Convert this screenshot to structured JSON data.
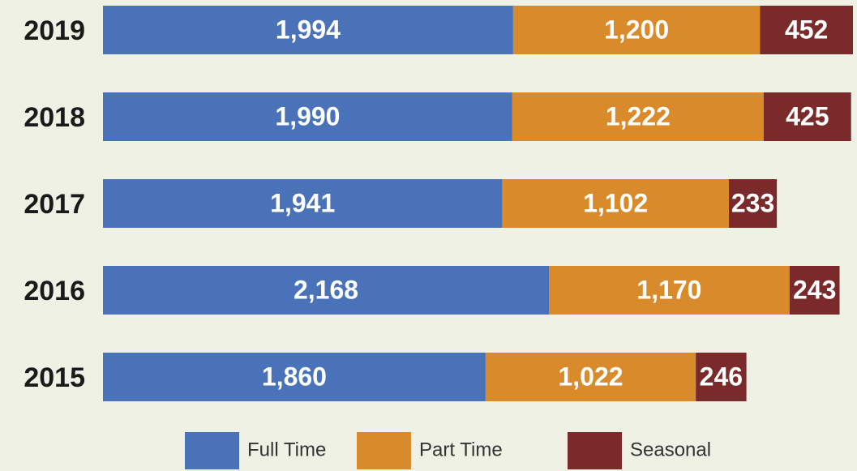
{
  "chart_data": {
    "type": "stacked-bar-horizontal",
    "categories": [
      "2019",
      "2018",
      "2017",
      "2016",
      "2015"
    ],
    "series": [
      {
        "name": "Full Time",
        "color": "#4a72b9",
        "values": [
          1994,
          1990,
          1941,
          2168,
          1860
        ],
        "value_labels": [
          "1,994",
          "1,990",
          "1,941",
          "2,168",
          "1,860"
        ]
      },
      {
        "name": "Part Time",
        "color": "#d98a2b",
        "values": [
          1200,
          1222,
          1102,
          1170,
          1022
        ],
        "value_labels": [
          "1,200",
          "1,222",
          "1,102",
          "1,170",
          "1,022"
        ]
      },
      {
        "name": "Seasonal",
        "color": "#7a2a2b",
        "values": [
          452,
          425,
          233,
          243,
          246
        ],
        "value_labels": [
          "452",
          "425",
          "233",
          "243",
          "246"
        ]
      }
    ],
    "legend": "bottom"
  }
}
